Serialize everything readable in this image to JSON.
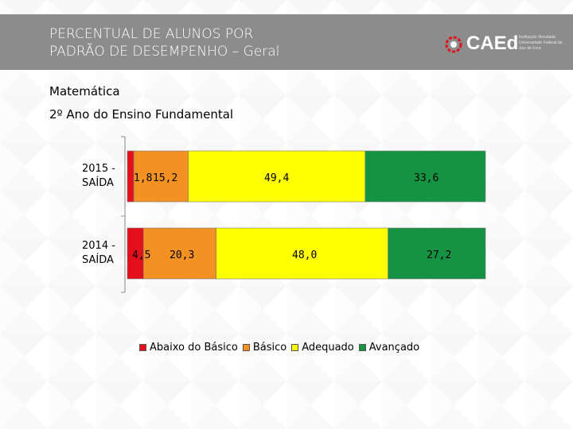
{
  "header": {
    "title_line1": "PERCENTUAL DE ALUNOS POR",
    "title_line2": "PADRÃO DE DESEMPENHO – Geral",
    "logo_word": "CAEd",
    "logo_text": "Instituição Vinculada Universidade Federal de Juiz de Fora"
  },
  "subject": "Matemática",
  "grade": "2º Ano do Ensino Fundamental",
  "colors": {
    "abaixo": "#e3101c",
    "basico": "#f39222",
    "adequado": "#ffff00",
    "avancado": "#149342",
    "header_bg": "#8c8c8c"
  },
  "chart_data": {
    "type": "bar",
    "orientation": "horizontal-stacked-100",
    "categories": [
      "2015 - SAÍDA",
      "2014 - SAÍDA"
    ],
    "category_lines": [
      [
        "2015 -",
        "SAÍDA"
      ],
      [
        "2014 -",
        "SAÍDA"
      ]
    ],
    "series": [
      {
        "name": "Abaixo do Básico",
        "color_key": "abaixo",
        "values": [
          1.8,
          4.5
        ],
        "labels": [
          "1,8",
          "4,5"
        ]
      },
      {
        "name": "Básico",
        "color_key": "basico",
        "values": [
          15.2,
          20.3
        ],
        "labels": [
          "15,2",
          "20,3"
        ]
      },
      {
        "name": "Adequado",
        "color_key": "adequado",
        "values": [
          49.4,
          48.0
        ],
        "labels": [
          "49,4",
          "48,0"
        ]
      },
      {
        "name": "Avançado",
        "color_key": "avancado",
        "values": [
          33.6,
          27.2
        ],
        "labels": [
          "33,6",
          "27,2"
        ]
      }
    ],
    "xlim": [
      0,
      100
    ],
    "legend_position": "bottom"
  },
  "legend": [
    "Abaixo do Básico",
    "Básico",
    "Adequado",
    "Avançado"
  ]
}
